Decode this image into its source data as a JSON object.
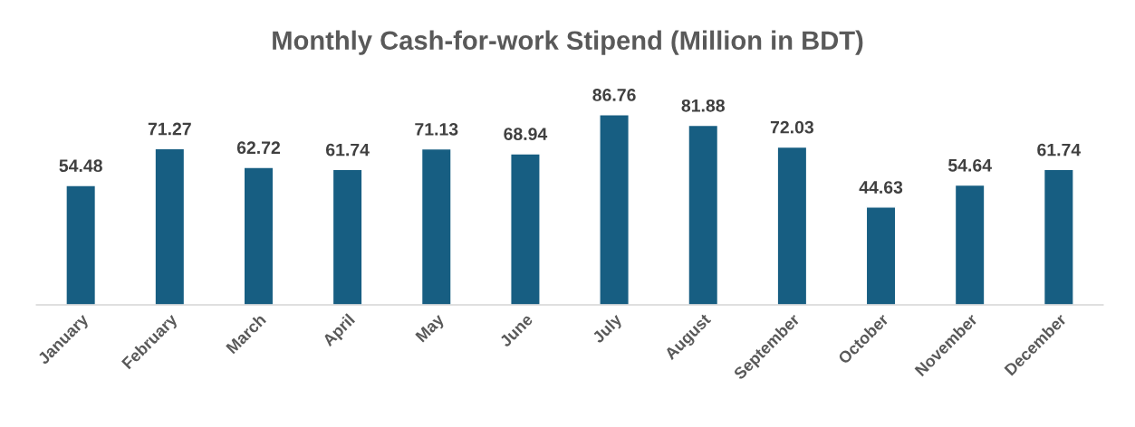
{
  "chart_data": {
    "type": "bar",
    "title": "Monthly Cash-for-work Stipend (Million in BDT)",
    "categories": [
      "January",
      "February",
      "March",
      "April",
      "May",
      "June",
      "July",
      "August",
      "September",
      "October",
      "November",
      "December"
    ],
    "values": [
      54.48,
      71.27,
      62.72,
      61.74,
      71.13,
      68.94,
      86.76,
      81.88,
      72.03,
      44.63,
      54.64,
      61.74
    ],
    "color": "#175e82",
    "data_labels": true,
    "tick_labels": "x",
    "grid": false,
    "legend": false
  }
}
